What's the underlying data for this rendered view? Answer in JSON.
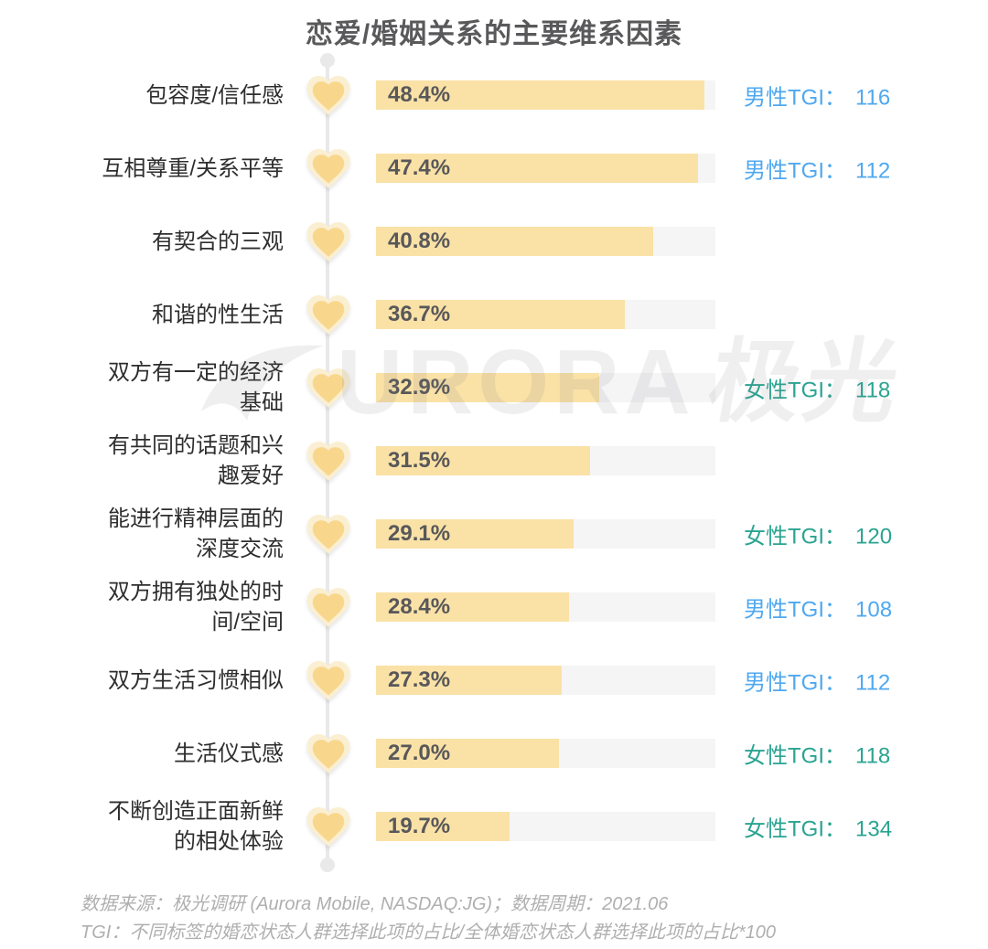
{
  "title": "恋爱/婚姻关系的主要维系因素",
  "watermark": {
    "text_latin": "URORA",
    "text_cjk": "极光",
    "logo": "aurora-swoosh"
  },
  "chart_data": {
    "type": "bar",
    "orientation": "horizontal",
    "title": "恋爱/婚姻关系的主要维系因素",
    "xlim": [
      0,
      50
    ],
    "unit": "%",
    "grid": false,
    "legend": false,
    "categories": [
      "包容度/信任感",
      "互相尊重/关系平等",
      "有契合的三观",
      "和谐的性生活",
      "双方有一定的经济基础",
      "有共同的话题和兴趣爱好",
      "能进行精神层面的深度交流",
      "双方拥有独处的时间/空间",
      "双方生活习惯相似",
      "生活仪式感",
      "不断创造正面新鲜的相处体验"
    ],
    "values": [
      48.4,
      47.4,
      40.8,
      36.7,
      32.9,
      31.5,
      29.1,
      28.4,
      27.3,
      27.0,
      19.7
    ],
    "tgi": [
      {
        "gender": "male",
        "label": "男性TGI：",
        "value": "116"
      },
      {
        "gender": "male",
        "label": "男性TGI：",
        "value": "112"
      },
      null,
      null,
      {
        "gender": "female",
        "label": "女性TGI：",
        "value": "118"
      },
      null,
      {
        "gender": "female",
        "label": "女性TGI：",
        "value": "120"
      },
      {
        "gender": "male",
        "label": "男性TGI：",
        "value": "108"
      },
      {
        "gender": "male",
        "label": "男性TGI：",
        "value": "112"
      },
      {
        "gender": "female",
        "label": "女性TGI：",
        "value": "118"
      },
      {
        "gender": "female",
        "label": "女性TGI：",
        "value": "134"
      }
    ]
  },
  "colors": {
    "bar_fill": "#FAE1A6",
    "bar_track": "#F5F5F6",
    "heart_inner": "#F8D78D",
    "heart_outer": "#FBEFD2",
    "male_tgi": "#4FA8F0",
    "female_tgi": "#2AA491",
    "timeline": "#E9E9EA",
    "title_text": "#59595B",
    "label_text": "#2E2E2E",
    "value_text": "#58585A",
    "footer_text": "#AFAFAF"
  },
  "footer": {
    "line1": "数据来源：极光调研 (Aurora Mobile, NASDAQ:JG)；数据周期：2021.06",
    "line2": "TGI：不同标签的婚恋状态人群选择此项的占比/全体婚恋状态人群选择此项的占比*100"
  }
}
